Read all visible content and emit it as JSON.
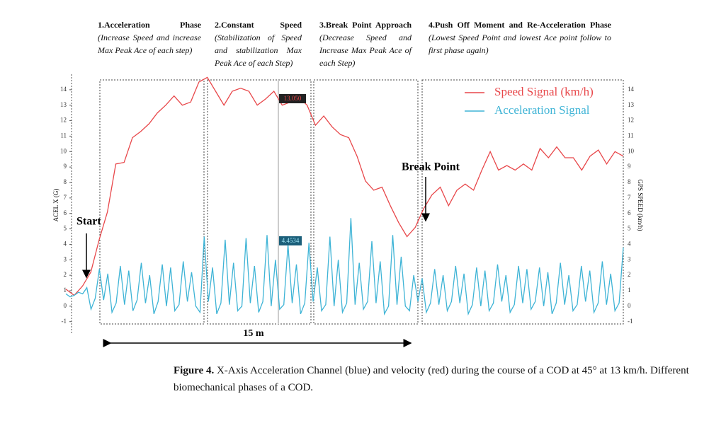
{
  "chart_data": {
    "type": "line",
    "ylabel": "ACEL X (G)",
    "y2label": "GPS SPEED (km/h)",
    "ylim": [
      -1.7,
      15
    ],
    "yticks": [
      -1,
      0,
      1,
      2,
      3,
      4,
      5,
      6,
      7,
      8,
      9,
      10,
      11,
      12,
      13,
      14
    ],
    "y2lim": [
      -1.7,
      15
    ],
    "y2ticks": [
      -1,
      0,
      1,
      2,
      3,
      4,
      5,
      6,
      7,
      8,
      9,
      10,
      11,
      12,
      13,
      14
    ],
    "legend": "upper right",
    "series": [
      {
        "name": "Speed Signal (km/h)",
        "color": "#e8474a",
        "axis": "y2",
        "values": [
          1.1,
          0.7,
          1.3,
          2.2,
          4.3,
          6.1,
          9.2,
          9.3,
          10.9,
          11.3,
          11.8,
          12.5,
          13.0,
          13.6,
          13.0,
          13.2,
          14.5,
          14.8,
          13.9,
          13.0,
          13.9,
          14.1,
          13.9,
          13.0,
          13.4,
          13.9,
          13.0,
          13.2,
          13.5,
          13.0,
          11.7,
          12.3,
          11.6,
          11.1,
          10.9,
          9.7,
          8.1,
          7.5,
          7.7,
          6.5,
          5.4,
          4.5,
          5.1,
          6.3,
          7.2,
          7.7,
          6.5,
          7.5,
          7.9,
          7.5,
          8.8,
          10.0,
          8.8,
          9.1,
          8.8,
          9.2,
          8.8,
          10.2,
          9.6,
          10.3,
          9.6,
          9.6,
          8.8,
          9.7,
          10.1,
          9.2,
          10.0,
          9.7
        ]
      },
      {
        "name": "Acceleration Signal",
        "color": "#3fb4d6",
        "values": [
          0.8,
          0.6,
          0.7,
          0.9,
          0.8,
          1.2,
          -0.2,
          0.5,
          2.4,
          0.4,
          2.1,
          -0.4,
          0.2,
          2.6,
          0.1,
          2.3,
          -0.3,
          0.4,
          2.8,
          0.2,
          2.0,
          -0.5,
          0.3,
          2.7,
          0.0,
          2.5,
          -0.3,
          0.1,
          2.9,
          0.3,
          2.2,
          0.0,
          -0.4,
          4.5,
          0.3,
          2.5,
          -0.5,
          0.2,
          4.3,
          0.1,
          2.8,
          -0.3,
          0.0,
          4.4,
          0.2,
          2.6,
          -0.4,
          0.3,
          4.6,
          0.0,
          3.0,
          -0.2,
          0.1,
          4.0,
          0.2,
          2.7,
          -0.5,
          0.2,
          4.1,
          0.3,
          2.5,
          -0.3,
          0.1,
          4.5,
          0.0,
          3.0,
          -0.4,
          0.2,
          5.7,
          0.1,
          2.8,
          -0.2,
          0.3,
          4.2,
          0.2,
          2.9,
          -0.5,
          0.0,
          4.6,
          0.1,
          3.2,
          0.0,
          -0.3,
          2.0,
          0.3,
          1.8,
          -0.4,
          0.2,
          2.4,
          0.1,
          2.0,
          -0.3,
          0.3,
          2.6,
          0.2,
          2.1,
          -0.5,
          0.1,
          2.5,
          0.0,
          2.3,
          -0.3,
          0.2,
          2.7,
          0.3,
          2.0,
          -0.4,
          0.1,
          2.6,
          0.2,
          2.4,
          -0.2,
          0.3,
          2.5,
          0.0,
          2.2,
          -0.5,
          0.2,
          2.8,
          0.1,
          2.0,
          -0.3,
          0.1,
          2.6,
          0.3,
          2.3,
          -0.4,
          0.2,
          2.9,
          0.1,
          2.1,
          -0.3,
          0.2,
          3.8
        ]
      }
    ],
    "readouts": [
      "13.050",
      "4.4534"
    ],
    "phases": [
      {
        "title": "1.Acceleration Phase",
        "text": "(Increase Speed and increase Max Peak Ace of each step)"
      },
      {
        "title": "2.Constant Speed",
        "text": "(Stabilization of Speed and stabilization Max Peak Ace of each Step)"
      },
      {
        "title": "3.Break Point Approach",
        "text": "(Decrease Speed and Increase Max Peak Ace of each Step)"
      },
      {
        "title": "4.Push Off Moment and Re-Acceleration Phase",
        "text": "(Lowest Speed Point and lowest Ace point follow to first phase again)"
      }
    ],
    "annotations": [
      "Start",
      "Break Point",
      "15 m"
    ]
  },
  "caption": {
    "label": "Figure 4.",
    "text": "X-Axis Acceleration Channel (blue) and velocity (red) during the course of a COD at 45° at 13 km/h. Different biomechanical phases of a COD."
  }
}
